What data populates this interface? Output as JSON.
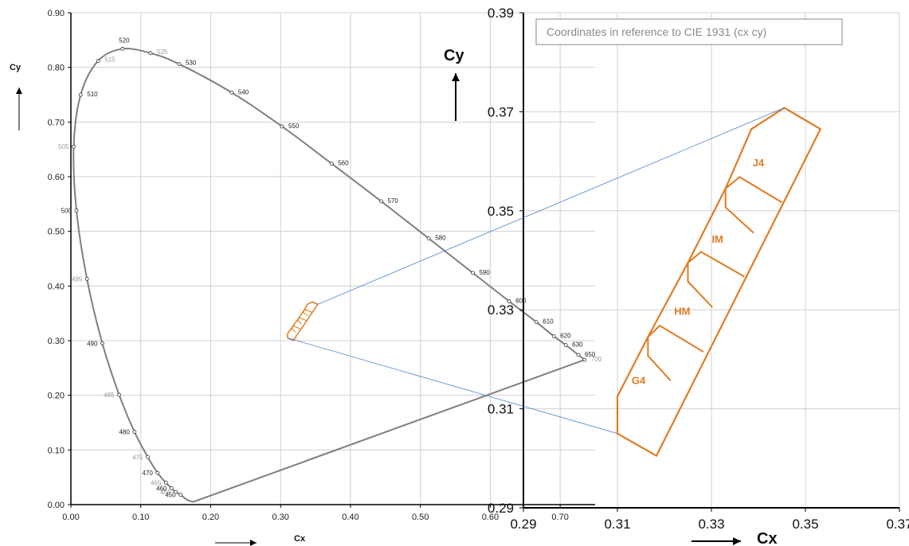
{
  "colors": {
    "locus": "#7f7f7f",
    "bins": "#e07b22",
    "leader": "#4a82c4",
    "grid": "#d0d0d0",
    "axis": "#000000"
  },
  "chart_data": [
    {
      "type": "line",
      "name": "cie-1931-chromaticity-diagram",
      "xlabel": "Cx",
      "ylabel": "Cy",
      "xlim": [
        0,
        0.75
      ],
      "ylim": [
        0,
        0.9
      ],
      "xticks": [
        "0.00",
        "0.10",
        "0.20",
        "0.30",
        "0.40",
        "0.50",
        "0.60",
        "0.70"
      ],
      "yticks": [
        "0.00",
        "0.10",
        "0.20",
        "0.30",
        "0.40",
        "0.50",
        "0.60",
        "0.70",
        "0.80",
        "0.90"
      ],
      "grid": true,
      "spectral_locus": [
        {
          "wl": "450",
          "x": 0.157,
          "y": 0.018,
          "faint": false
        },
        {
          "wl": "455",
          "x": 0.15,
          "y": 0.023,
          "faint": true
        },
        {
          "wl": "460",
          "x": 0.144,
          "y": 0.03,
          "faint": false
        },
        {
          "wl": "465",
          "x": 0.136,
          "y": 0.04,
          "faint": true
        },
        {
          "wl": "470",
          "x": 0.124,
          "y": 0.058,
          "faint": false
        },
        {
          "wl": "475",
          "x": 0.11,
          "y": 0.087,
          "faint": true
        },
        {
          "wl": "480",
          "x": 0.091,
          "y": 0.133,
          "faint": false
        },
        {
          "wl": "485",
          "x": 0.069,
          "y": 0.201,
          "faint": true
        },
        {
          "wl": "490",
          "x": 0.045,
          "y": 0.295,
          "faint": false
        },
        {
          "wl": "495",
          "x": 0.023,
          "y": 0.413,
          "faint": true
        },
        {
          "wl": "500",
          "x": 0.008,
          "y": 0.538,
          "faint": false
        },
        {
          "wl": "505",
          "x": 0.004,
          "y": 0.655,
          "faint": true
        },
        {
          "wl": "510",
          "x": 0.014,
          "y": 0.75,
          "faint": false
        },
        {
          "wl": "515",
          "x": 0.039,
          "y": 0.812,
          "faint": true
        },
        {
          "wl": "520",
          "x": 0.074,
          "y": 0.834,
          "faint": false
        },
        {
          "wl": "525",
          "x": 0.114,
          "y": 0.826,
          "faint": true
        },
        {
          "wl": "530",
          "x": 0.155,
          "y": 0.806,
          "faint": false
        },
        {
          "wl": "540",
          "x": 0.23,
          "y": 0.754,
          "faint": false
        },
        {
          "wl": "550",
          "x": 0.302,
          "y": 0.692,
          "faint": false
        },
        {
          "wl": "560",
          "x": 0.373,
          "y": 0.624,
          "faint": false
        },
        {
          "wl": "570",
          "x": 0.444,
          "y": 0.555,
          "faint": false
        },
        {
          "wl": "580",
          "x": 0.512,
          "y": 0.487,
          "faint": false
        },
        {
          "wl": "590",
          "x": 0.575,
          "y": 0.424,
          "faint": false
        },
        {
          "wl": "600",
          "x": 0.627,
          "y": 0.372,
          "faint": false
        },
        {
          "wl": "610",
          "x": 0.666,
          "y": 0.334,
          "faint": false
        },
        {
          "wl": "620",
          "x": 0.691,
          "y": 0.308,
          "faint": false
        },
        {
          "wl": "630",
          "x": 0.708,
          "y": 0.292,
          "faint": false
        },
        {
          "wl": "650",
          "x": 0.726,
          "y": 0.274,
          "faint": false
        },
        {
          "wl": "700",
          "x": 0.735,
          "y": 0.265,
          "faint": true
        }
      ],
      "locus_end": {
        "x": 0.175,
        "y": 0.005
      },
      "spectral_start_tail": {
        "x": 0.166,
        "y": 0.009
      }
    },
    {
      "type": "line",
      "name": "white-led-bin-zoom",
      "xlabel": "Cx",
      "ylabel": "Cy",
      "xlim": [
        0.29,
        0.37
      ],
      "ylim": [
        0.29,
        0.39
      ],
      "xticks": [
        "0.29",
        "0.31",
        "0.33",
        "0.35",
        "0.37"
      ],
      "yticks": [
        "0.29",
        "0.31",
        "0.33",
        "0.35",
        "0.37",
        "0.39"
      ],
      "grid": true,
      "annotation": "Coordinates in reference to CIE 1931 (cx cy)",
      "outer_outline": [
        [
          0.31,
          0.3125
        ],
        [
          0.31,
          0.305
        ],
        [
          0.3183,
          0.3005
        ],
        [
          0.3532,
          0.3665
        ],
        [
          0.3455,
          0.3708
        ],
        [
          0.3385,
          0.3665
        ],
        [
          0.333,
          0.3545
        ],
        [
          0.325,
          0.3395
        ],
        [
          0.3165,
          0.3245
        ],
        [
          0.31,
          0.3125
        ]
      ],
      "bin_boundaries": [
        [
          [
            0.3165,
            0.3245
          ],
          [
            0.3165,
            0.3207
          ],
          [
            0.3213,
            0.3157
          ]
        ],
        [
          [
            0.3165,
            0.3245
          ],
          [
            0.319,
            0.3268
          ],
          [
            0.3283,
            0.3215
          ]
        ],
        [
          [
            0.325,
            0.3395
          ],
          [
            0.325,
            0.3357
          ],
          [
            0.3302,
            0.3305
          ]
        ],
        [
          [
            0.325,
            0.3395
          ],
          [
            0.3278,
            0.3417
          ],
          [
            0.337,
            0.3367
          ]
        ],
        [
          [
            0.333,
            0.3545
          ],
          [
            0.333,
            0.3507
          ],
          [
            0.339,
            0.3455
          ]
        ],
        [
          [
            0.333,
            0.3545
          ],
          [
            0.336,
            0.3568
          ],
          [
            0.345,
            0.3517
          ]
        ]
      ],
      "bins": [
        {
          "label": "G4",
          "x": 0.3145,
          "y": 0.315
        },
        {
          "label": "HM",
          "x": 0.3238,
          "y": 0.329
        },
        {
          "label": "IM",
          "x": 0.3313,
          "y": 0.3435
        },
        {
          "label": "J4",
          "x": 0.34,
          "y": 0.359
        }
      ]
    }
  ]
}
